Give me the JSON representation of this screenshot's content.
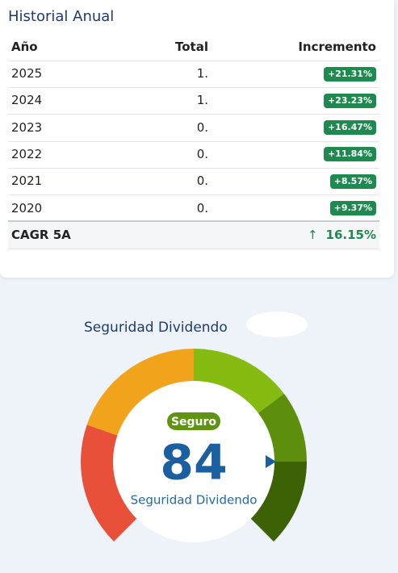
{
  "header": {
    "title": "Historial Anual"
  },
  "table": {
    "columns": [
      "Año",
      "Total",
      "Incremento"
    ],
    "rows": [
      [
        "2025",
        "1.",
        "+21.31%"
      ],
      [
        "2024",
        "1.",
        "+23.23%"
      ],
      [
        "2023",
        "0.",
        "+16.47%"
      ],
      [
        "2022",
        "0.",
        "+11.84%"
      ],
      [
        "2021",
        "0.",
        "+8.57%"
      ],
      [
        "2020",
        "0.",
        "+9.37%"
      ]
    ],
    "footer": [
      "CAGR 5A",
      "16.15%"
    ]
  },
  "gauge": {
    "title": "Seguridad Dividendo",
    "badge": "Seguro",
    "score": 84,
    "caption": "Seguridad Dividendo"
  }
}
